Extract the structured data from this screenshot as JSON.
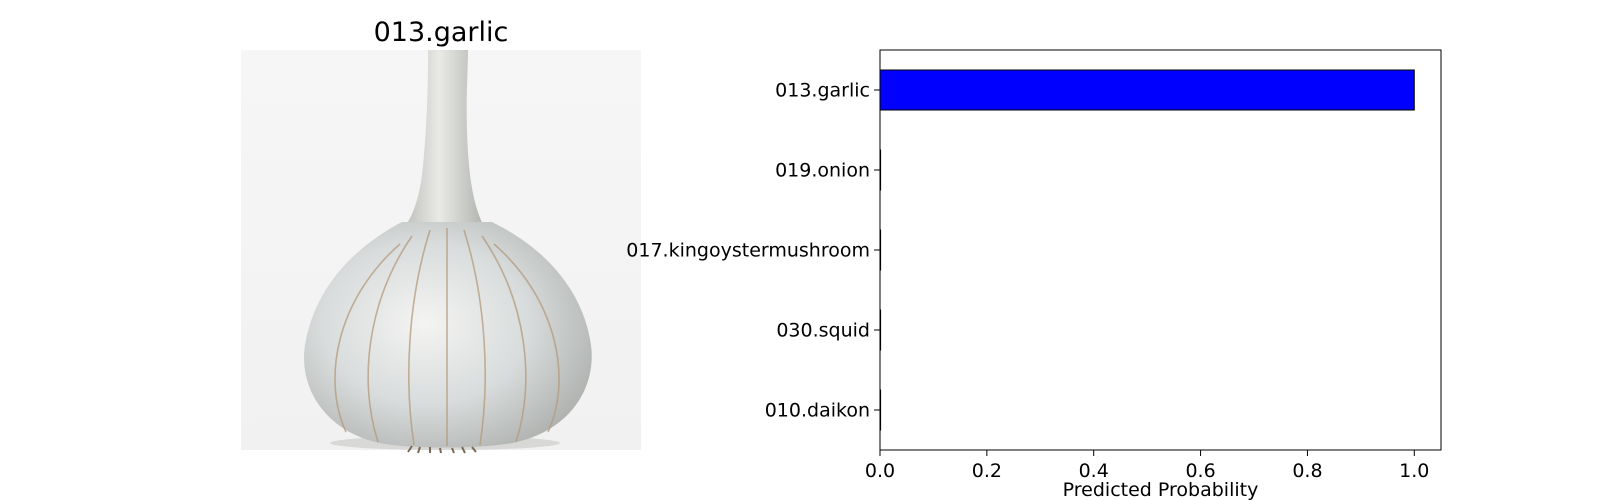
{
  "image_panel": {
    "title": "013.garlic",
    "subject_icon": "garlic-bulb-icon"
  },
  "chart_data": {
    "type": "bar",
    "orientation": "horizontal",
    "title": "",
    "categories": [
      "013.garlic",
      "019.onion",
      "017.kingoystermushroom",
      "030.squid",
      "010.daikon"
    ],
    "values": [
      1.0,
      0.0,
      0.0,
      0.0,
      0.0
    ],
    "xlabel": "Predicted Probability",
    "ylabel": "",
    "xlim": [
      0,
      1.05
    ],
    "xticks": [
      "0.0",
      "0.2",
      "0.4",
      "0.6",
      "0.8",
      "1.0"
    ],
    "grid": false,
    "bar_color": "#0000ff",
    "bar_edge_color": "#000000"
  }
}
